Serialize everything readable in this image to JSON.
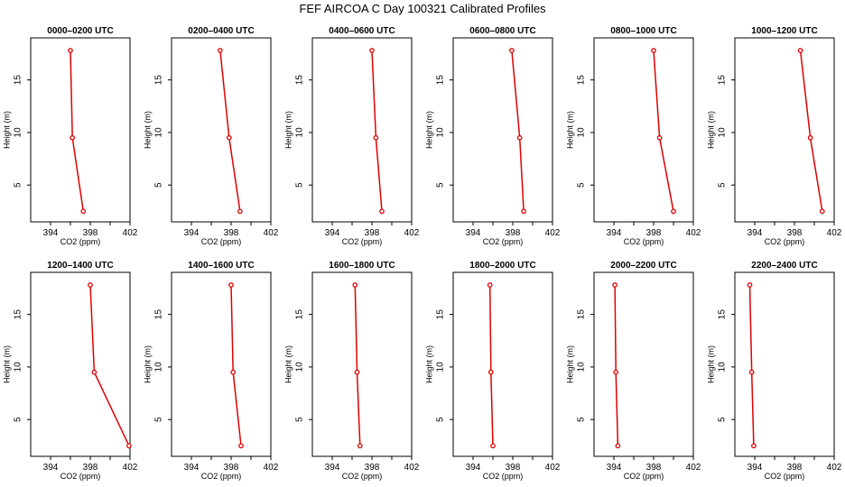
{
  "figure": {
    "title": "FEF AIRCOA C  Day 100321  Calibrated Profiles"
  },
  "colors": {
    "series": "#e00000",
    "axes": "#000000",
    "background": "#ffffff"
  },
  "chart_data": [
    {
      "type": "line",
      "title": "0000–0200 UTC",
      "xlabel": "CO2 (ppm)",
      "ylabel": "Height (m)",
      "xlim": [
        392,
        402
      ],
      "ylim": [
        1.5,
        19
      ],
      "xticks": [
        394,
        398,
        402
      ],
      "yticks": [
        5,
        10,
        15
      ],
      "heights": [
        2.5,
        9.5,
        17.8
      ],
      "values": [
        397.3,
        396.2,
        396.0
      ]
    },
    {
      "type": "line",
      "title": "0200–0400 UTC",
      "xlabel": "CO2 (ppm)",
      "ylabel": "Height (m)",
      "xlim": [
        392,
        402
      ],
      "ylim": [
        1.5,
        19
      ],
      "xticks": [
        394,
        398,
        402
      ],
      "yticks": [
        5,
        10,
        15
      ],
      "heights": [
        2.5,
        9.5,
        17.8
      ],
      "values": [
        398.9,
        397.8,
        396.9
      ]
    },
    {
      "type": "line",
      "title": "0400–0600 UTC",
      "xlabel": "CO2 (ppm)",
      "ylabel": "Height (m)",
      "xlim": [
        392,
        402
      ],
      "ylim": [
        1.5,
        19
      ],
      "xticks": [
        394,
        398,
        402
      ],
      "yticks": [
        5,
        10,
        15
      ],
      "heights": [
        2.5,
        9.5,
        17.8
      ],
      "values": [
        399.0,
        398.4,
        398.0
      ]
    },
    {
      "type": "line",
      "title": "0600–0800 UTC",
      "xlabel": "CO2 (ppm)",
      "ylabel": "Height (m)",
      "xlim": [
        392,
        402
      ],
      "ylim": [
        1.5,
        19
      ],
      "xticks": [
        394,
        398,
        402
      ],
      "yticks": [
        5,
        10,
        15
      ],
      "heights": [
        2.5,
        9.5,
        17.8
      ],
      "values": [
        399.1,
        398.7,
        397.9
      ]
    },
    {
      "type": "line",
      "title": "0800–1000 UTC",
      "xlabel": "CO2 (ppm)",
      "ylabel": "Height (m)",
      "xlim": [
        392,
        402
      ],
      "ylim": [
        1.5,
        19
      ],
      "xticks": [
        394,
        398,
        402
      ],
      "yticks": [
        5,
        10,
        15
      ],
      "heights": [
        2.5,
        9.5,
        17.8
      ],
      "values": [
        400.0,
        398.6,
        398.0
      ]
    },
    {
      "type": "line",
      "title": "1000–1200 UTC",
      "xlabel": "CO2 (ppm)",
      "ylabel": "Height (m)",
      "xlim": [
        392,
        402
      ],
      "ylim": [
        1.5,
        19
      ],
      "xticks": [
        394,
        398,
        402
      ],
      "yticks": [
        5,
        10,
        15
      ],
      "heights": [
        2.5,
        9.5,
        17.8
      ],
      "values": [
        400.8,
        399.6,
        398.6
      ]
    },
    {
      "type": "line",
      "title": "1200–1400 UTC",
      "xlabel": "CO2 (ppm)",
      "ylabel": "Height (m)",
      "xlim": [
        392,
        402
      ],
      "ylim": [
        1.5,
        19
      ],
      "xticks": [
        394,
        398,
        402
      ],
      "yticks": [
        5,
        10,
        15
      ],
      "heights": [
        2.5,
        9.5,
        17.8
      ],
      "values": [
        401.9,
        398.4,
        398.0
      ]
    },
    {
      "type": "line",
      "title": "1400–1600 UTC",
      "xlabel": "CO2 (ppm)",
      "ylabel": "Height (m)",
      "xlim": [
        392,
        402
      ],
      "ylim": [
        1.5,
        19
      ],
      "xticks": [
        394,
        398,
        402
      ],
      "yticks": [
        5,
        10,
        15
      ],
      "heights": [
        2.5,
        9.5,
        17.8
      ],
      "values": [
        399.0,
        398.2,
        398.0
      ]
    },
    {
      "type": "line",
      "title": "1600–1800 UTC",
      "xlabel": "CO2 (ppm)",
      "ylabel": "Height (m)",
      "xlim": [
        392,
        402
      ],
      "ylim": [
        1.5,
        19
      ],
      "xticks": [
        394,
        398,
        402
      ],
      "yticks": [
        5,
        10,
        15
      ],
      "heights": [
        2.5,
        9.5,
        17.8
      ],
      "values": [
        396.8,
        396.5,
        396.3
      ]
    },
    {
      "type": "line",
      "title": "1800–2000 UTC",
      "xlabel": "CO2 (ppm)",
      "ylabel": "Height (m)",
      "xlim": [
        392,
        402
      ],
      "ylim": [
        1.5,
        19
      ],
      "xticks": [
        394,
        398,
        402
      ],
      "yticks": [
        5,
        10,
        15
      ],
      "heights": [
        2.5,
        9.5,
        17.8
      ],
      "values": [
        396.0,
        395.8,
        395.7
      ]
    },
    {
      "type": "line",
      "title": "2000–2200 UTC",
      "xlabel": "CO2 (ppm)",
      "ylabel": "Height (m)",
      "xlim": [
        392,
        402
      ],
      "ylim": [
        1.5,
        19
      ],
      "xticks": [
        394,
        398,
        402
      ],
      "yticks": [
        5,
        10,
        15
      ],
      "heights": [
        2.5,
        9.5,
        17.8
      ],
      "values": [
        394.4,
        394.2,
        394.1
      ]
    },
    {
      "type": "line",
      "title": "2200–2400 UTC",
      "xlabel": "CO2 (ppm)",
      "ylabel": "Height (m)",
      "xlim": [
        392,
        402
      ],
      "ylim": [
        1.5,
        19
      ],
      "xticks": [
        394,
        398,
        402
      ],
      "yticks": [
        5,
        10,
        15
      ],
      "heights": [
        2.5,
        9.5,
        17.8
      ],
      "values": [
        393.9,
        393.7,
        393.5
      ]
    }
  ]
}
